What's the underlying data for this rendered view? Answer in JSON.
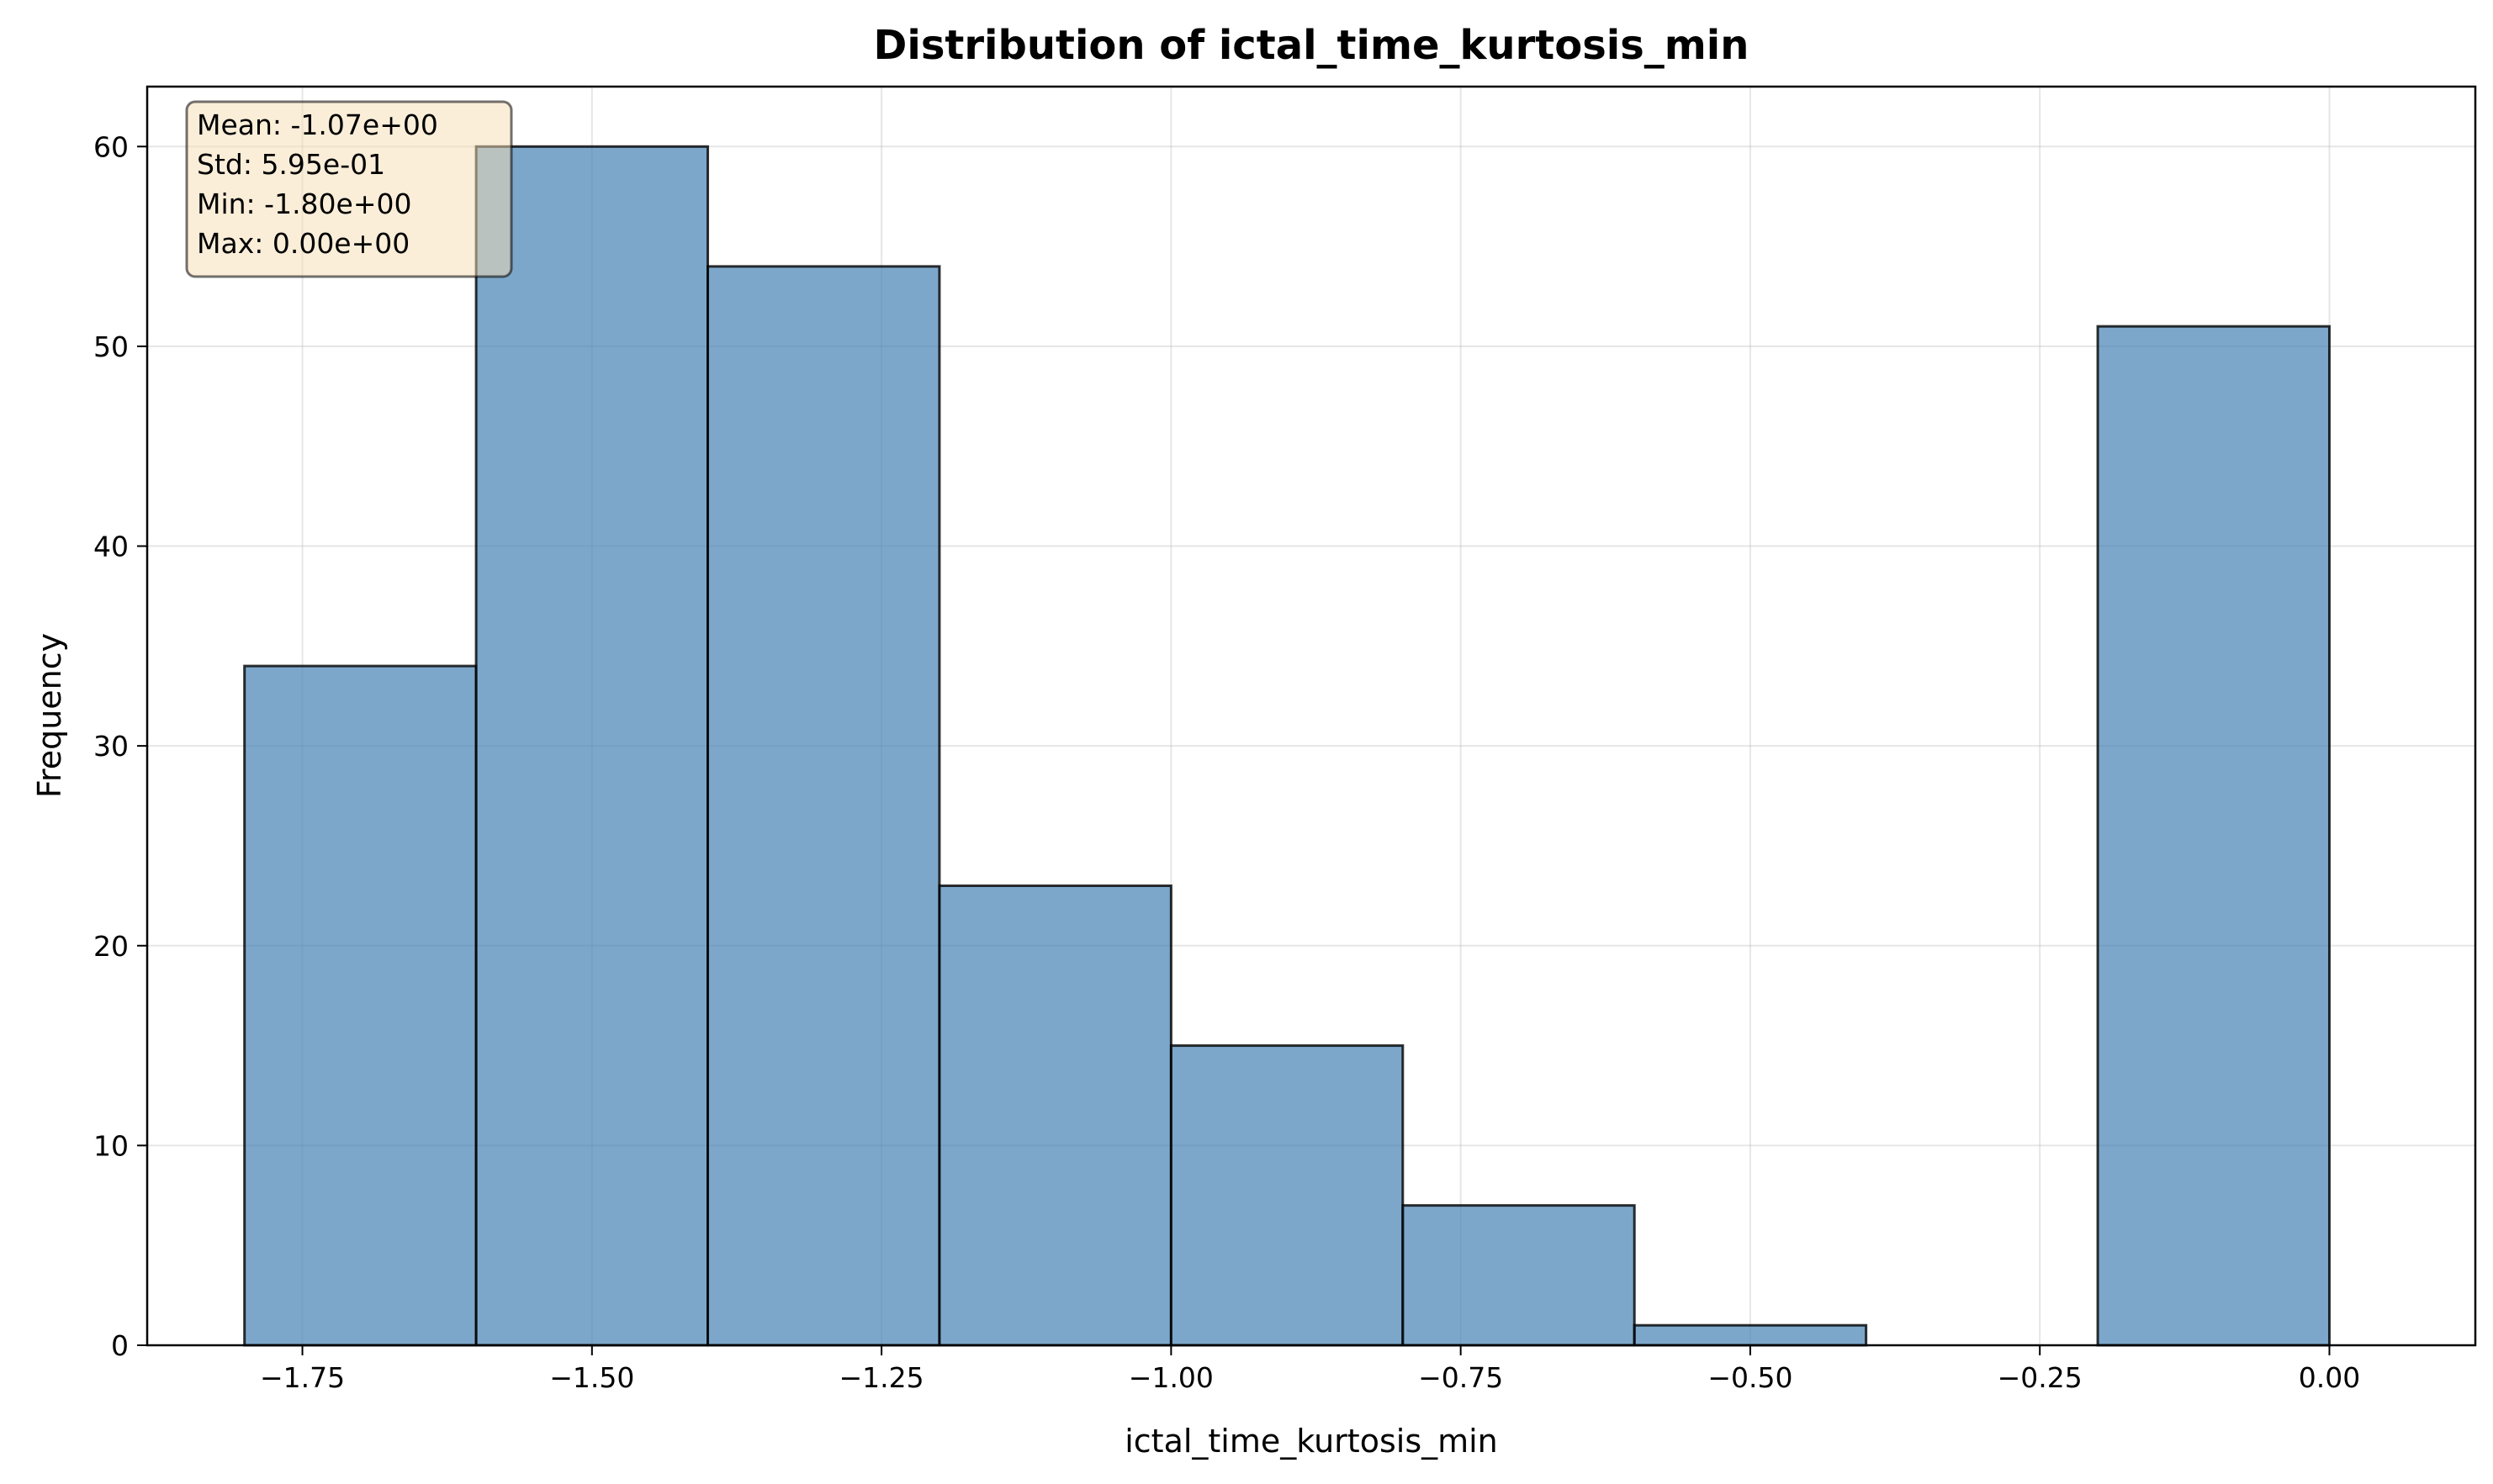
{
  "chart_data": {
    "type": "bar",
    "title": "Distribution of ictal_time_kurtosis_min",
    "xlabel": "ictal_time_kurtosis_min",
    "ylabel": "Frequency",
    "xlim": [
      -1.884,
      0.126
    ],
    "ylim": [
      0,
      63
    ],
    "grid": true,
    "bin_edges": [
      -1.8,
      -1.6,
      -1.4,
      -1.2,
      -1.0,
      -0.8,
      -0.6,
      -0.4,
      -0.2,
      0.0
    ],
    "values": [
      34,
      60,
      54,
      23,
      15,
      7,
      1,
      0,
      51
    ],
    "x_ticks": [
      -1.75,
      -1.5,
      -1.25,
      -1.0,
      -0.75,
      -0.5,
      -0.25,
      0.0
    ],
    "x_tick_labels": [
      "−1.75",
      "−1.50",
      "−1.25",
      "−1.00",
      "−0.75",
      "−0.50",
      "−0.25",
      "0.00"
    ],
    "y_ticks": [
      0,
      10,
      20,
      30,
      40,
      50,
      60
    ],
    "y_tick_labels": [
      "0",
      "10",
      "20",
      "30",
      "40",
      "50",
      "60"
    ],
    "stats": {
      "lines": [
        "Mean: -1.07e+00",
        "Std: 5.95e-01",
        "Min: -1.80e+00",
        "Max: 0.00e+00"
      ],
      "placement": "top-left"
    },
    "colors": {
      "bar_fill": "#4682b4",
      "bar_fill_opacity": 0.7,
      "bar_edge": "#000000",
      "stats_box_fill": "#f5deb3",
      "stats_box_fill_opacity": 0.5
    }
  }
}
